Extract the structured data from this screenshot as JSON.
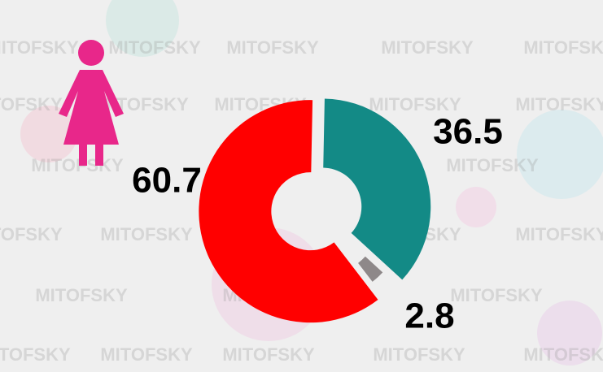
{
  "chart_data": {
    "type": "donut",
    "values": [
      36.5,
      2.8,
      60.7
    ],
    "colors": [
      "#138a86",
      "#8e8889",
      "#ff0000"
    ],
    "watermark": "MITOFSKY"
  }
}
